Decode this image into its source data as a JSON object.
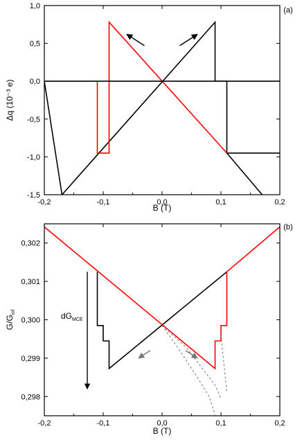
{
  "chart_data": [
    {
      "type": "line",
      "panel_label": "(a)",
      "xlabel": "B  (T)",
      "ylabel": "Δq  (10⁻³ e)",
      "xlim": [
        -0.2,
        0.2
      ],
      "ylim": [
        -1.5,
        1.0
      ],
      "x_tick_labels": [
        "-0,2",
        "-0,1",
        "0,0",
        "0,1",
        "0,2"
      ],
      "x_ticks": [
        -0.2,
        -0.1,
        0.0,
        0.1,
        0.2
      ],
      "y_tick_labels": [
        "1,0",
        "0,5",
        "0,0",
        "-0,5",
        "-1,0",
        "-1,5"
      ],
      "y_ticks": [
        1.0,
        0.5,
        0.0,
        -0.5,
        -1.0,
        -1.5
      ],
      "grid": false,
      "series": [
        {
          "color": "#000000",
          "style": "solid",
          "x": [
            -0.2,
            -0.17,
            0.09,
            0.09,
            0.11,
            0.11,
            0.2
          ],
          "y": [
            0.0,
            -1.5,
            0.78,
            0.0,
            0.0,
            -0.95,
            -0.95
          ],
          "segments_note": "black branch"
        },
        {
          "color": "#000000",
          "style": "solid",
          "x": [
            0.11,
            0.17
          ],
          "y": [
            -0.95,
            -1.5
          ]
        },
        {
          "color": "#ff0000",
          "style": "solid",
          "x": [
            -0.11,
            -0.11,
            -0.09,
            -0.09,
            0.11
          ],
          "y": [
            0.0,
            -0.95,
            -0.95,
            0.78,
            -0.95
          ]
        },
        {
          "color": "#000000",
          "style": "solid",
          "x": [
            -0.2,
            0.2
          ],
          "y": [
            0.0,
            0.0
          ]
        }
      ],
      "arrows": [
        {
          "from": [
            -0.03,
            0.47
          ],
          "to": [
            -0.06,
            0.62
          ],
          "color": "#000000"
        },
        {
          "from": [
            0.03,
            0.47
          ],
          "to": [
            0.06,
            0.62
          ],
          "color": "#000000"
        }
      ]
    },
    {
      "type": "line",
      "panel_label": "(b)",
      "xlabel": "B  (T)",
      "ylabel": "G/G",
      "ylabel_sub": "inf",
      "xlim": [
        -0.2,
        0.2
      ],
      "ylim": [
        0.2975,
        0.3025
      ],
      "x_tick_labels": [
        "-0,2",
        "-0,1",
        "0,0",
        "0,1",
        "0,2"
      ],
      "x_ticks": [
        -0.2,
        -0.1,
        0.0,
        0.1,
        0.2
      ],
      "y_tick_labels": [
        "0,302",
        "0,301",
        "0,300",
        "0,299",
        "0,298"
      ],
      "y_ticks": [
        0.302,
        0.301,
        0.3,
        0.299,
        0.298
      ],
      "grid": false,
      "series": [
        {
          "color": "#000000",
          "style": "solid",
          "x": [
            -0.11,
            -0.11,
            -0.1,
            -0.1,
            -0.09,
            -0.09,
            0.11
          ],
          "y": [
            0.30125,
            0.29985,
            0.29985,
            0.29945,
            0.29945,
            0.29873,
            0.30125
          ]
        },
        {
          "color": "#ff0000",
          "style": "solid",
          "x": [
            -0.2,
            0.09,
            0.09,
            0.1,
            0.1,
            0.11,
            0.11,
            0.2
          ],
          "y": [
            0.30242,
            0.29873,
            0.29945,
            0.29945,
            0.29985,
            0.29985,
            0.30125,
            0.30242
          ]
        },
        {
          "color": "#777777",
          "style": "dashed",
          "x": [
            0.0,
            0.03,
            0.06,
            0.08,
            0.09
          ],
          "y": [
            0.29985,
            0.2992,
            0.2985,
            0.298,
            0.29752
          ]
        },
        {
          "color": "#777777",
          "style": "dashed",
          "x": [
            0.0,
            0.04,
            0.07,
            0.09,
            0.1
          ],
          "y": [
            0.29985,
            0.2993,
            0.2987,
            0.2983,
            0.29795
          ]
        },
        {
          "color": "#777777",
          "style": "dashed",
          "x": [
            0.1,
            0.11
          ],
          "y": [
            0.2996,
            0.2981
          ]
        }
      ],
      "annotation": {
        "text": "dG",
        "sub": "MCE",
        "arrow_x": -0.127,
        "arrow_from": 0.30125,
        "arrow_to": 0.2982
      },
      "arrows": [
        {
          "from": [
            -0.02,
            0.2992
          ],
          "to": [
            -0.04,
            0.299
          ],
          "color": "#777777"
        },
        {
          "from": [
            0.04,
            0.2992
          ],
          "to": [
            0.06,
            0.299
          ],
          "color": "#777777"
        }
      ]
    }
  ]
}
